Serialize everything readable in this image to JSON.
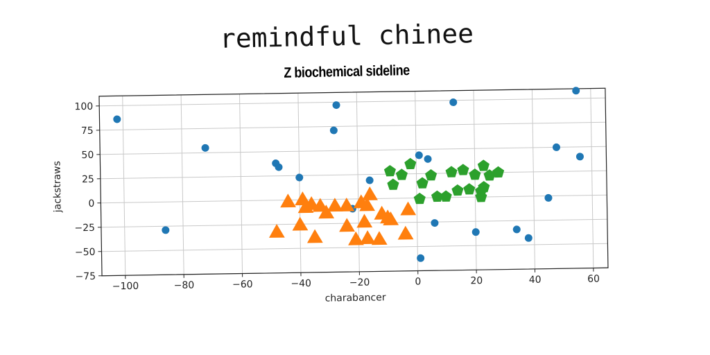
{
  "header": {
    "main_title": "remindful chinee",
    "subtitle": "Z biochemical sideline"
  },
  "chart_data": {
    "type": "scatter",
    "title": "Z biochemical sideline",
    "xlabel": "charabancer",
    "ylabel": "jackstraws",
    "xlim": [
      -108,
      65
    ],
    "ylim": [
      -75,
      110
    ],
    "xticks": [
      -100,
      -80,
      -60,
      -40,
      -20,
      0,
      20,
      40,
      60
    ],
    "yticks": [
      -75,
      -50,
      -25,
      0,
      25,
      50,
      75,
      100
    ],
    "grid": true,
    "series": [
      {
        "marker": "circle",
        "color": "#1f77b4",
        "points": [
          [
            -102,
            86
          ],
          [
            -72,
            55
          ],
          [
            -48,
            38
          ],
          [
            -47,
            34
          ],
          [
            -40,
            23
          ],
          [
            -27,
            97
          ],
          [
            -28,
            71
          ],
          [
            -86,
            -29
          ],
          [
            -16,
            19
          ],
          [
            -22,
            -10
          ],
          [
            1,
            44
          ],
          [
            4,
            40
          ],
          [
            13,
            98
          ],
          [
            55,
            108
          ],
          [
            48,
            50
          ],
          [
            56,
            40
          ],
          [
            45,
            -2
          ],
          [
            6,
            -26
          ],
          [
            20,
            -36
          ],
          [
            34,
            -34
          ],
          [
            38,
            -43
          ],
          [
            1,
            -62
          ]
        ]
      },
      {
        "marker": "triangle",
        "color": "#ff7f0e",
        "points": [
          [
            -44,
            -2
          ],
          [
            -39,
            0
          ],
          [
            -36,
            -5
          ],
          [
            -33,
            -7
          ],
          [
            -31,
            -14
          ],
          [
            -38,
            -8
          ],
          [
            -28,
            -7
          ],
          [
            -24,
            -7
          ],
          [
            -19,
            -4
          ],
          [
            -16,
            4
          ],
          [
            -17,
            -7
          ],
          [
            -12,
            -16
          ],
          [
            -10,
            -20
          ],
          [
            -9,
            -22
          ],
          [
            -3,
            -12
          ],
          [
            -18,
            -24
          ],
          [
            -24,
            -28
          ],
          [
            -40,
            -26
          ],
          [
            -35,
            -39
          ],
          [
            -21,
            -42
          ],
          [
            -17,
            -41
          ],
          [
            -13,
            -42
          ],
          [
            -4,
            -37
          ],
          [
            -48,
            -33
          ]
        ]
      },
      {
        "marker": "pentagon",
        "color": "#2ca02c",
        "points": [
          [
            -9,
            28
          ],
          [
            -5,
            24
          ],
          [
            -2,
            35
          ],
          [
            -8,
            14
          ],
          [
            2,
            15
          ],
          [
            5,
            23
          ],
          [
            12,
            26
          ],
          [
            16,
            28
          ],
          [
            20,
            23
          ],
          [
            23,
            32
          ],
          [
            25,
            22
          ],
          [
            28,
            25
          ],
          [
            1,
            -1
          ],
          [
            7,
            1
          ],
          [
            10,
            1
          ],
          [
            14,
            7
          ],
          [
            18,
            8
          ],
          [
            22,
            6
          ],
          [
            23,
            10
          ],
          [
            22,
            0
          ]
        ]
      }
    ]
  }
}
